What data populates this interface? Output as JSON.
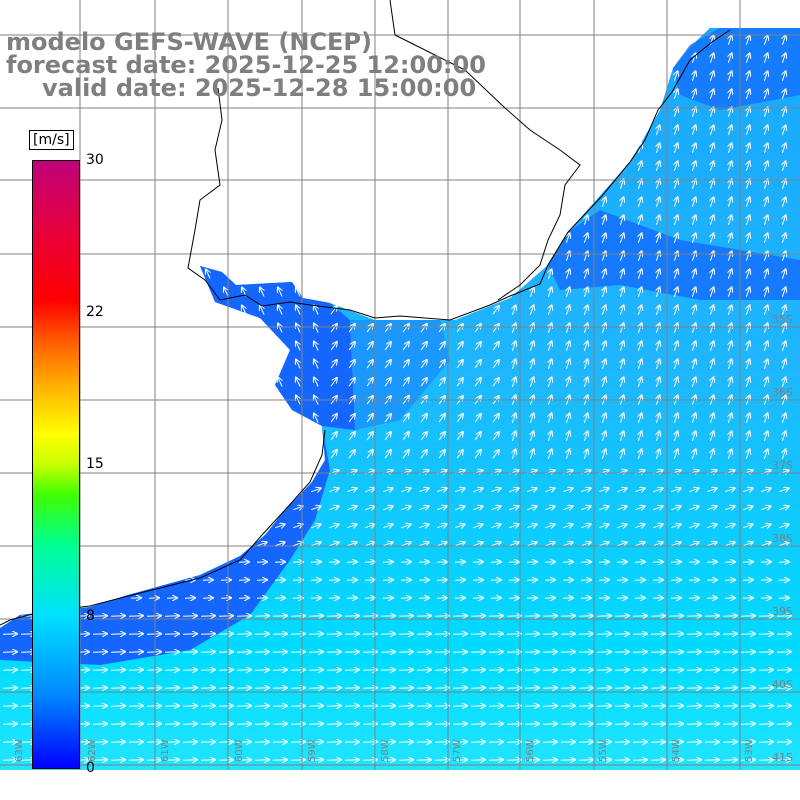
{
  "title": {
    "line1": "modelo GEFS-WAVE (NCEP)",
    "line2": "forecast date: 2025-12-25 12:00:00",
    "line3": "valid date: 2025-12-28 15:00:00"
  },
  "colorbar": {
    "unit": "[m/s]",
    "ticks": [
      "30",
      "22",
      "15",
      "8",
      "0"
    ],
    "range": [
      0,
      30
    ]
  },
  "latitude_labels": [
    "35S",
    "36S",
    "37S",
    "38S",
    "39S",
    "40S",
    "41S"
  ],
  "longitude_labels": [
    "63W",
    "62W",
    "61W",
    "60W",
    "59W",
    "58W",
    "57W",
    "56W",
    "55W",
    "54W",
    "53W"
  ],
  "colors": {
    "land": "#ffffff",
    "coastline": "#000000",
    "grid": "#808080",
    "low_speed": "#0044ff",
    "high_speed": "#00e8ff",
    "arrows": "#ffffff"
  }
}
